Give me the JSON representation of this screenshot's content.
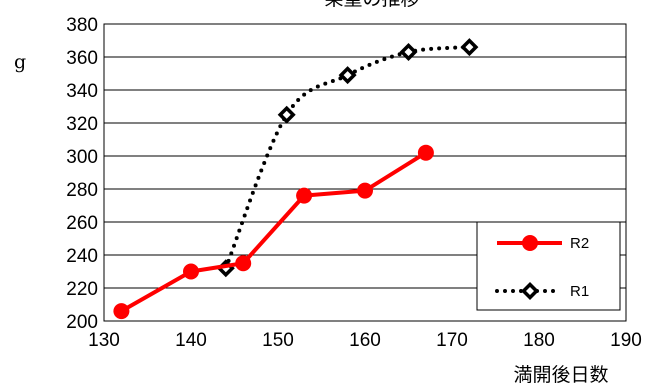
{
  "chart_data": {
    "type": "line",
    "title": "果重の推移",
    "xlabel": "満開後日数",
    "ylabel": "g",
    "xlim": [
      130,
      190
    ],
    "ylim": [
      200,
      380
    ],
    "x_ticks": [
      "130",
      "140",
      "150",
      "160",
      "170",
      "180",
      "190"
    ],
    "y_ticks": [
      "200",
      "220",
      "240",
      "260",
      "280",
      "300",
      "320",
      "340",
      "360",
      "380"
    ],
    "grid": "horizontal",
    "legend_position": "right",
    "series": [
      {
        "name": "R2",
        "color": "#ff0000",
        "line_style": "solid",
        "marker": "circle",
        "x": [
          132,
          140,
          146,
          153,
          160,
          167
        ],
        "values": [
          206,
          230,
          235,
          276,
          279,
          302
        ]
      },
      {
        "name": "R1",
        "color": "#000000",
        "line_style": "dotted",
        "marker": "diamond",
        "x": [
          144,
          151,
          158,
          165,
          172
        ],
        "values": [
          232,
          325,
          349,
          363,
          366
        ]
      }
    ]
  }
}
